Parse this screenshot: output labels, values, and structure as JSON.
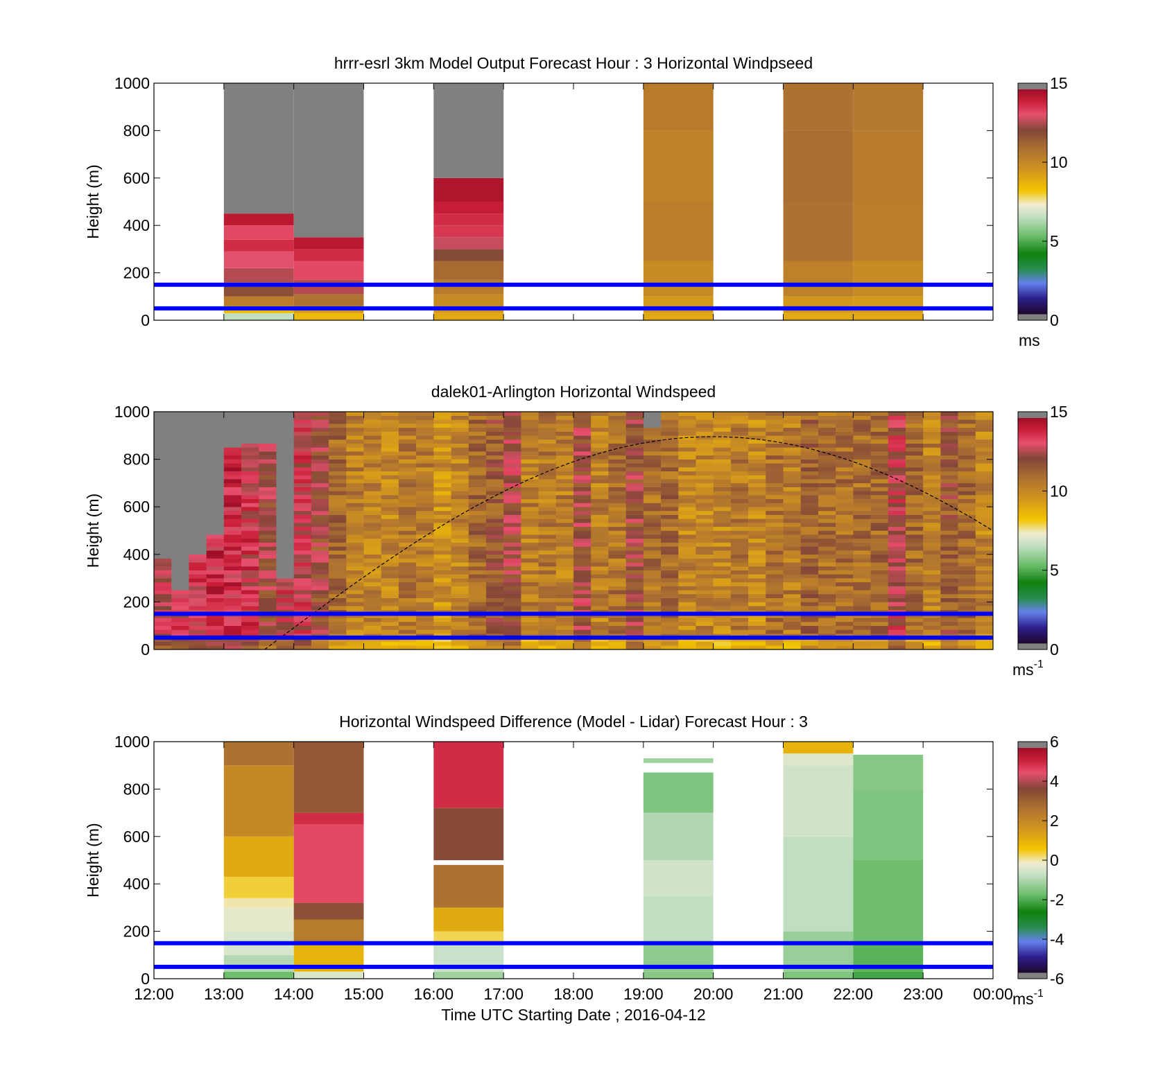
{
  "figure": {
    "xlabel": "Time UTC  Starting Date ; 2016-04-12",
    "x_ticks": [
      "12:00",
      "13:00",
      "14:00",
      "15:00",
      "16:00",
      "17:00",
      "18:00",
      "19:00",
      "20:00",
      "21:00",
      "22:00",
      "23:00",
      "00:00"
    ],
    "ylabel": "Height (m)",
    "y_ticks": [
      "0",
      "200",
      "400",
      "600",
      "800",
      "1000"
    ]
  },
  "colors": {
    "reference_lines": "#0000ff",
    "missing": "#808080",
    "sun_curve": "#000000"
  },
  "chart_data": [
    {
      "type": "heatmap",
      "title": "hrrr-esrl 3km Model Output   Forecast Hour : 3 Horizontal Windpseed",
      "ylabel": "Height (m)",
      "ylim": [
        0,
        1000
      ],
      "xlim": [
        "12:00",
        "00:00"
      ],
      "reference_lines_m": [
        50,
        150
      ],
      "colorbar": {
        "range": [
          0,
          15
        ],
        "ticks": [
          "0",
          "5",
          "10",
          "15"
        ],
        "unit": "ms"
      },
      "columns": [
        {
          "start": "13:00",
          "end": "14:00",
          "top": 1000,
          "bands": [
            [
              0,
              30,
              6.5
            ],
            [
              30,
              60,
              8.5
            ],
            [
              60,
              100,
              10.5
            ],
            [
              100,
              160,
              12
            ],
            [
              160,
              220,
              12.8
            ],
            [
              220,
              290,
              13.3
            ],
            [
              290,
              340,
              14
            ],
            [
              340,
              400,
              13.5
            ],
            [
              400,
              450,
              14.5
            ],
            [
              450,
              1000,
              null
            ]
          ]
        },
        {
          "start": "14:00",
          "end": "15:00",
          "top": 1000,
          "bands": [
            [
              0,
              30,
              8.5
            ],
            [
              30,
              60,
              9.5
            ],
            [
              60,
              110,
              11
            ],
            [
              110,
              170,
              12.8
            ],
            [
              170,
              250,
              13.5
            ],
            [
              250,
              300,
              14
            ],
            [
              300,
              350,
              14.5
            ],
            [
              350,
              1000,
              null
            ]
          ]
        },
        {
          "start": "16:00",
          "end": "17:00",
          "top": 1000,
          "bands": [
            [
              0,
              30,
              9
            ],
            [
              30,
              60,
              9.5
            ],
            [
              60,
              110,
              10
            ],
            [
              110,
              170,
              10.6
            ],
            [
              170,
              250,
              11.2
            ],
            [
              250,
              300,
              12.2
            ],
            [
              300,
              350,
              13
            ],
            [
              350,
              400,
              13.8
            ],
            [
              400,
              450,
              14
            ],
            [
              450,
              500,
              14.3
            ],
            [
              500,
              600,
              14.7
            ],
            [
              600,
              1000,
              null
            ]
          ]
        },
        {
          "start": "19:00",
          "end": "20:00",
          "top": 1000,
          "bands": [
            [
              0,
              30,
              9
            ],
            [
              30,
              100,
              9.5
            ],
            [
              100,
              250,
              10
            ],
            [
              250,
              500,
              10.5
            ],
            [
              500,
              800,
              10.3
            ],
            [
              800,
              1000,
              10.6
            ]
          ]
        },
        {
          "start": "21:00",
          "end": "22:00",
          "top": 1000,
          "bands": [
            [
              0,
              30,
              9
            ],
            [
              30,
              100,
              9.6
            ],
            [
              100,
              250,
              10.4
            ],
            [
              250,
              500,
              11
            ],
            [
              500,
              800,
              11.1
            ],
            [
              800,
              1000,
              11
            ]
          ]
        },
        {
          "start": "22:00",
          "end": "23:00",
          "top": 1000,
          "bands": [
            [
              0,
              30,
              9
            ],
            [
              30,
              100,
              9.5
            ],
            [
              100,
              250,
              10
            ],
            [
              250,
              500,
              10.5
            ],
            [
              500,
              800,
              10.6
            ],
            [
              800,
              1000,
              10.7
            ]
          ]
        }
      ]
    },
    {
      "type": "heatmap",
      "title": "dalek01-Arlington  Horizontal Windspeed",
      "ylabel": "Height (m)",
      "ylim": [
        0,
        1000
      ],
      "xlim": [
        "12:00",
        "00:00"
      ],
      "reference_lines_m": [
        50,
        150
      ],
      "colorbar": {
        "range": [
          0,
          15
        ],
        "ticks": [
          "0",
          "5",
          "10",
          "15"
        ],
        "unit": "ms-1"
      },
      "interval_minutes": 15,
      "column_mean_speed": [
        13,
        13.5,
        13.5,
        14,
        14,
        13.5,
        12.5,
        13.2,
        13.3,
        12.2,
        11.2,
        10.5,
        10.4,
        10.2,
        10.6,
        10.5,
        9.8,
        10.2,
        11.3,
        11.8,
        12.5,
        10.4,
        10.6,
        10.5,
        12.5,
        10.4,
        10.9,
        12.3,
        11,
        11.2,
        10.2,
        10.3,
        10.2,
        10.6,
        10.1,
        10.9,
        10.5,
        11.3,
        10.9,
        11,
        11,
        11.2,
        13,
        11.1,
        10.4,
        11.8,
        11.2,
        10.3
      ],
      "missing_above_m": [
        380,
        250,
        390,
        480,
        840,
        865,
        865,
        300,
        null,
        null,
        null,
        null,
        null,
        null,
        null,
        null,
        null,
        null,
        null,
        null,
        null,
        null,
        null,
        null,
        null,
        null,
        null,
        null,
        925,
        null,
        null,
        null,
        null,
        null,
        null,
        null,
        null,
        null,
        null,
        null,
        null,
        null,
        null,
        null,
        null,
        null,
        null,
        null
      ],
      "sun_curve": {
        "label": "",
        "peak_time": "20:00",
        "peak_height_m": 895,
        "x_at_zero": "13:35"
      }
    },
    {
      "type": "heatmap",
      "title": "Horizontal Windspeed Difference (Model - Lidar) Forecast Hour : 3",
      "ylabel": "Height (m)",
      "ylim": [
        0,
        1000
      ],
      "xlim": [
        "12:00",
        "00:00"
      ],
      "reference_lines_m": [
        50,
        150
      ],
      "colorbar": {
        "range": [
          -6,
          6
        ],
        "ticks": [
          "-6",
          "-4",
          "-2",
          "0",
          "2",
          "4",
          "6"
        ],
        "unit": "ms-1"
      },
      "columns": [
        {
          "start": "13:00",
          "end": "14:00",
          "top": 1000,
          "bands": [
            [
              0,
              30,
              -1.8
            ],
            [
              30,
              100,
              -1
            ],
            [
              100,
              200,
              -0.5
            ],
            [
              200,
              300,
              -0.3
            ],
            [
              300,
              340,
              0
            ],
            [
              340,
              430,
              0.4
            ],
            [
              430,
              600,
              1.2
            ],
            [
              600,
              900,
              2.1
            ],
            [
              900,
              1000,
              2.8
            ]
          ]
        },
        {
          "start": "14:00",
          "end": "15:00",
          "top": 1000,
          "bands": [
            [
              0,
              30,
              -0.5
            ],
            [
              30,
              150,
              1
            ],
            [
              150,
              250,
              2.5
            ],
            [
              250,
              320,
              3.6
            ],
            [
              320,
              650,
              4.8
            ],
            [
              650,
              700,
              5.2
            ],
            [
              700,
              1000,
              3.4
            ]
          ]
        },
        {
          "start": "16:00",
          "end": "17:00",
          "top": 1000,
          "bands": [
            [
              0,
              30,
              -1.2
            ],
            [
              30,
              150,
              -0.7
            ],
            [
              150,
              200,
              0.3
            ],
            [
              200,
              300,
              1.2
            ],
            [
              300,
              480,
              2.8
            ],
            [
              500,
              720,
              3.7
            ],
            [
              720,
              1000,
              5.2
            ]
          ]
        },
        {
          "start": "19:00",
          "end": "20:00",
          "top": 930,
          "bands": [
            [
              0,
              30,
              -1.5
            ],
            [
              30,
              150,
              -1.4
            ],
            [
              150,
              350,
              -0.8
            ],
            [
              350,
              500,
              -0.6
            ],
            [
              500,
              700,
              -1
            ],
            [
              700,
              870,
              -1.6
            ],
            [
              910,
              930,
              -1.2
            ]
          ]
        },
        {
          "start": "21:00",
          "end": "22:00",
          "top": 1000,
          "bands": [
            [
              0,
              30,
              -1.6
            ],
            [
              30,
              200,
              -1.3
            ],
            [
              200,
              600,
              -0.8
            ],
            [
              600,
              900,
              -0.6
            ],
            [
              900,
              950,
              -0.4
            ],
            [
              950,
              1000,
              1
            ]
          ]
        },
        {
          "start": "22:00",
          "end": "23:00",
          "top": 945,
          "bands": [
            [
              0,
              30,
              -2.2
            ],
            [
              30,
              150,
              -2
            ],
            [
              150,
              500,
              -1.8
            ],
            [
              500,
              800,
              -1.6
            ],
            [
              800,
              945,
              -1.5
            ]
          ]
        }
      ]
    }
  ]
}
